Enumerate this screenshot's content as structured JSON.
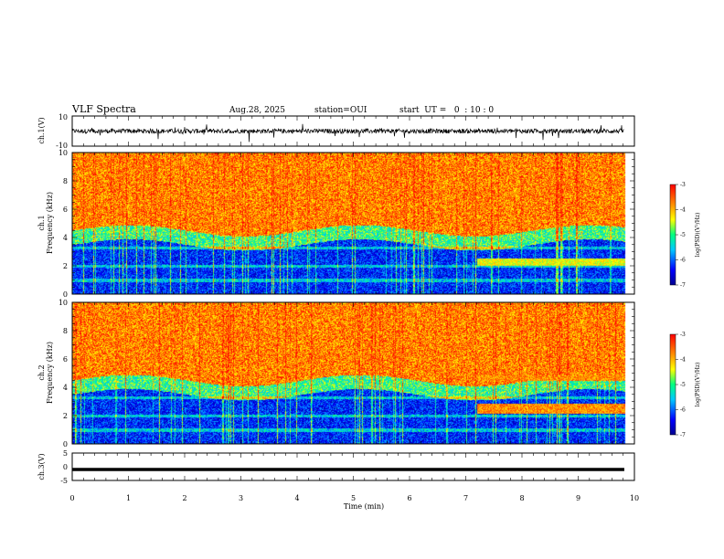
{
  "header": {
    "title": "VLF Spectra",
    "date": "Aug.28, 2025",
    "station": "station=OUI",
    "start": "start  UT =   0  : 10 : 0"
  },
  "chart_data": [
    {
      "type": "line",
      "ylabel": "ch.1(V)",
      "ylim": [
        -10,
        10
      ],
      "ytick_labels": [
        "10",
        "-10"
      ],
      "baseline": 0,
      "noise_amplitude": 1.5
    },
    {
      "type": "heatmap",
      "ylabel_line1": "ch.1",
      "ylabel_line2": "Frequency  (kHz)",
      "ylim": [
        0,
        10
      ],
      "ytick_labels": [
        "0",
        "2",
        "4",
        "6",
        "8",
        "10"
      ],
      "colorbar": {
        "label": "log(PSD)(V²/Hz)",
        "range": [
          -7,
          -3
        ],
        "tick_labels": [
          "-3",
          "-4",
          "-5",
          "-6",
          "-7"
        ]
      },
      "band_edge_khz": 4.5
    },
    {
      "type": "heatmap",
      "ylabel_line1": "ch.2",
      "ylabel_line2": "Frequency  (kHz)",
      "ylim": [
        0,
        10
      ],
      "ytick_labels": [
        "0",
        "2",
        "4",
        "6",
        "8",
        "10"
      ],
      "colorbar": {
        "label": "log(PSD)(V²/Hz)",
        "range": [
          -7,
          -3
        ],
        "tick_labels": [
          "-3",
          "-4",
          "-5",
          "-6",
          "-7"
        ]
      },
      "band_edge_khz": 4.5
    },
    {
      "type": "line",
      "ylabel": "ch.3(V)",
      "ylim": [
        -5,
        5
      ],
      "ytick_labels": [
        "5",
        "0",
        "-5"
      ],
      "constant_value": -1
    }
  ],
  "xaxis": {
    "label": "Time  (min)",
    "range": [
      0,
      10
    ],
    "tick_labels": [
      "0",
      "1",
      "2",
      "3",
      "4",
      "5",
      "6",
      "7",
      "8",
      "9",
      "10"
    ],
    "data_end_min": 9.82
  },
  "colors": {
    "trace": "#000000",
    "scale": [
      "#00008f",
      "#0000ff",
      "#00bfff",
      "#00ff80",
      "#ffff00",
      "#ff8000",
      "#ff0000"
    ]
  }
}
